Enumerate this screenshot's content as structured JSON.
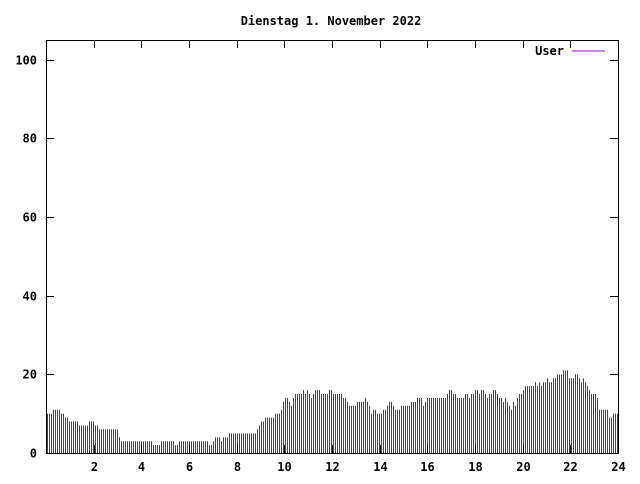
{
  "chart_data": {
    "type": "bar",
    "title": "Dienstag 1. November 2022",
    "xlabel": "",
    "ylabel": "",
    "xlim": [
      0,
      24
    ],
    "ylim": [
      0,
      105
    ],
    "x_ticks": [
      2,
      4,
      6,
      8,
      10,
      12,
      14,
      16,
      18,
      20,
      22,
      24
    ],
    "y_ticks": [
      0,
      20,
      40,
      60,
      80,
      100
    ],
    "grid": false,
    "legend_position": "top-right",
    "series": [
      {
        "name": "User",
        "color": "#9400d3",
        "values": [
          10,
          10,
          10,
          11,
          11,
          11,
          11,
          10,
          10,
          9,
          9,
          8,
          8,
          8,
          8,
          8,
          7,
          7,
          7,
          7,
          7,
          8,
          8,
          8,
          7,
          7,
          6,
          6,
          6,
          6,
          6,
          6,
          6,
          6,
          6,
          6,
          4,
          3,
          3,
          3,
          3,
          3,
          3,
          3,
          3,
          3,
          3,
          3,
          3,
          3,
          3,
          3,
          3,
          2,
          2,
          2,
          2,
          3,
          3,
          3,
          3,
          3,
          3,
          3,
          2,
          2,
          3,
          3,
          3,
          3,
          3,
          3,
          3,
          3,
          3,
          3,
          3,
          3,
          3,
          3,
          3,
          2,
          2,
          3,
          4,
          4,
          4,
          3,
          4,
          4,
          4,
          5,
          5,
          5,
          5,
          5,
          5,
          5,
          5,
          5,
          5,
          5,
          5,
          5,
          5,
          6,
          7,
          8,
          8,
          9,
          9,
          9,
          9,
          9,
          10,
          10,
          10,
          11,
          13,
          14,
          14,
          13,
          12,
          14,
          15,
          15,
          15,
          15,
          16,
          15,
          16,
          15,
          14,
          15,
          16,
          16,
          16,
          15,
          15,
          15,
          15,
          16,
          16,
          15,
          15,
          15,
          15,
          15,
          14,
          14,
          13,
          12,
          12,
          12,
          12,
          13,
          13,
          13,
          13,
          14,
          13,
          12,
          10,
          11,
          11,
          10,
          10,
          10,
          11,
          11,
          12,
          13,
          13,
          12,
          11,
          11,
          11,
          12,
          12,
          12,
          12,
          12,
          13,
          13,
          13,
          14,
          14,
          14,
          12,
          13,
          14,
          14,
          14,
          14,
          14,
          14,
          14,
          14,
          14,
          14,
          15,
          16,
          16,
          15,
          15,
          14,
          14,
          14,
          14,
          15,
          15,
          14,
          15,
          15,
          16,
          16,
          15,
          16,
          16,
          15,
          14,
          15,
          15,
          16,
          16,
          15,
          14,
          14,
          13,
          14,
          13,
          12,
          11,
          13,
          12,
          14,
          15,
          15,
          16,
          17,
          17,
          17,
          17,
          17,
          18,
          17,
          18,
          17,
          18,
          18,
          19,
          18,
          18,
          19,
          19,
          20,
          20,
          20,
          21,
          21,
          21,
          19,
          19,
          19,
          20,
          20,
          19,
          18,
          19,
          18,
          17,
          16,
          15,
          15,
          15,
          14,
          11,
          11,
          11,
          11,
          11,
          9,
          9,
          10,
          10,
          10
        ]
      }
    ]
  }
}
